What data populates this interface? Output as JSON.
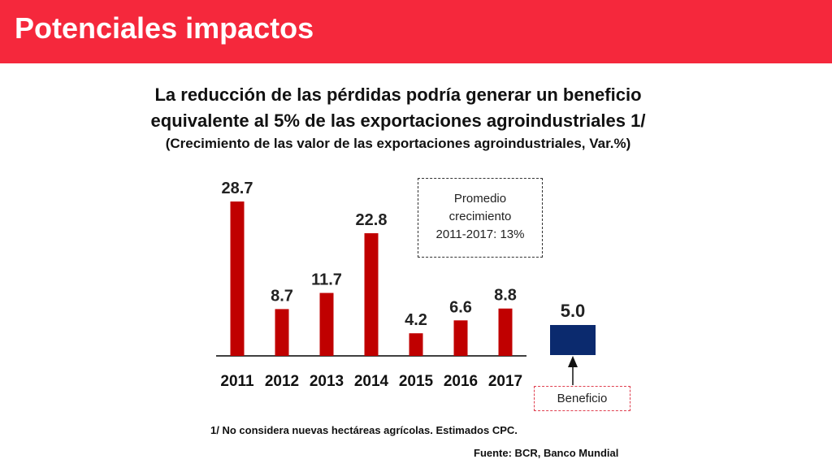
{
  "header": {
    "title": "Potenciales impactos"
  },
  "chart_data": {
    "type": "bar",
    "title": "La reducción de las pérdidas podría generar un beneficio equivalente al 5% de las exportaciones agroindustriales 1/",
    "title_line1": "La reducción de las pérdidas podría generar un beneficio",
    "title_line2": "equivalente al 5% de las exportaciones agroindustriales 1/",
    "subtitle": "(Crecimiento de las valor de las exportaciones agroindustriales, Var.%)",
    "categories": [
      "2011",
      "2012",
      "2013",
      "2014",
      "2015",
      "2016",
      "2017"
    ],
    "values": [
      28.7,
      8.7,
      11.7,
      22.8,
      4.2,
      6.6,
      8.8
    ],
    "value_labels": [
      "28.7",
      "8.7",
      "11.7",
      "22.8",
      "4.2",
      "6.6",
      "8.8"
    ],
    "bar_color": "#c00000",
    "benefit": {
      "value": 5.0,
      "label": "5.0",
      "color": "#0b2a6e",
      "caption": "Beneficio"
    },
    "annotation": {
      "lines": [
        "Promedio",
        "crecimiento",
        "2011-2017: 13%"
      ]
    },
    "ylim": [
      0,
      30
    ],
    "grid": false,
    "legend": "none"
  },
  "footnote": "1/ No considera nuevas hectáreas agrícolas. Estimados CPC.",
  "source": "Fuente: BCR, Banco Mundial",
  "colors": {
    "header": "#f5283c",
    "bars": "#c00000",
    "benefit": "#0b2a6e"
  }
}
